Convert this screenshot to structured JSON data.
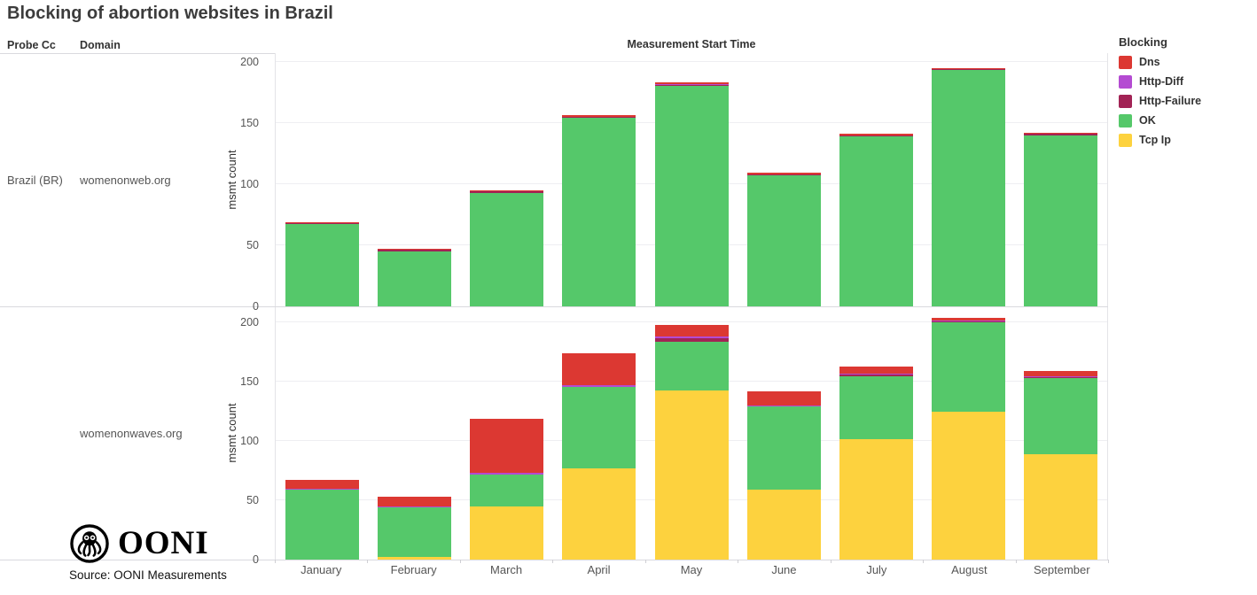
{
  "title": "Blocking of abortion websites in Brazil",
  "headers": {
    "probe_cc": "Probe Cc",
    "domain": "Domain",
    "x_axis": "Measurement Start Time"
  },
  "rows": [
    {
      "probe_cc": "Brazil (BR)",
      "domain": "womenonweb.org"
    },
    {
      "probe_cc": "",
      "domain": "womenonwaves.org"
    }
  ],
  "y_axis": {
    "label": "msmt count",
    "ticks": [
      0,
      50,
      100,
      150,
      200
    ]
  },
  "legend": {
    "title": "Blocking",
    "items": [
      {
        "label": "Dns",
        "color": "#dc3832"
      },
      {
        "label": "Http-Diff",
        "color": "#b44bd2"
      },
      {
        "label": "Http-Failure",
        "color": "#a22355"
      },
      {
        "label": "OK",
        "color": "#55c86a"
      },
      {
        "label": "Tcp Ip",
        "color": "#fdd23e"
      }
    ]
  },
  "chart_data": [
    {
      "type": "bar",
      "stacked": true,
      "domain": "womenonweb.org",
      "categories": [
        "January",
        "February",
        "March",
        "April",
        "May",
        "June",
        "July",
        "August",
        "September"
      ],
      "series": [
        {
          "name": "Tcp Ip",
          "values": [
            0,
            0,
            0,
            0,
            0,
            0,
            0,
            0,
            0
          ]
        },
        {
          "name": "OK",
          "values": [
            67,
            45,
            93,
            154,
            180,
            107,
            139,
            193,
            140
          ]
        },
        {
          "name": "Http-Failure",
          "values": [
            1,
            1,
            1,
            1,
            1,
            1,
            1,
            1,
            1
          ]
        },
        {
          "name": "Http-Diff",
          "values": [
            0,
            0,
            0,
            0,
            1,
            0,
            0,
            0,
            0
          ]
        },
        {
          "name": "Dns",
          "values": [
            1,
            1,
            1,
            1,
            1,
            1,
            1,
            1,
            1
          ]
        }
      ],
      "totals": [
        69,
        47,
        95,
        156,
        183,
        109,
        141,
        195,
        142
      ],
      "ylabel": "msmt count",
      "ylim": [
        0,
        207
      ],
      "grid": true,
      "legend_position": "right"
    },
    {
      "type": "bar",
      "stacked": true,
      "domain": "womenonwaves.org",
      "categories": [
        "January",
        "February",
        "March",
        "April",
        "May",
        "June",
        "July",
        "August",
        "September"
      ],
      "series": [
        {
          "name": "Tcp Ip",
          "values": [
            0,
            2,
            45,
            77,
            143,
            59,
            102,
            125,
            89
          ]
        },
        {
          "name": "OK",
          "values": [
            59,
            42,
            27,
            69,
            41,
            70,
            53,
            75,
            64
          ]
        },
        {
          "name": "Http-Failure",
          "values": [
            0,
            0,
            0,
            0,
            3,
            0,
            1,
            1,
            1
          ]
        },
        {
          "name": "Http-Diff",
          "values": [
            1,
            1,
            1,
            1,
            1,
            1,
            1,
            1,
            1
          ]
        },
        {
          "name": "Dns",
          "values": [
            7,
            8,
            46,
            27,
            10,
            12,
            6,
            2,
            4
          ]
        }
      ],
      "totals": [
        67,
        53,
        119,
        174,
        198,
        142,
        163,
        204,
        159
      ],
      "ylabel": "msmt count",
      "ylim": [
        0,
        213
      ],
      "grid": true,
      "legend_position": "right"
    }
  ],
  "footer": {
    "logo_text": "OONI",
    "source": "Source: OONI Measurements"
  }
}
